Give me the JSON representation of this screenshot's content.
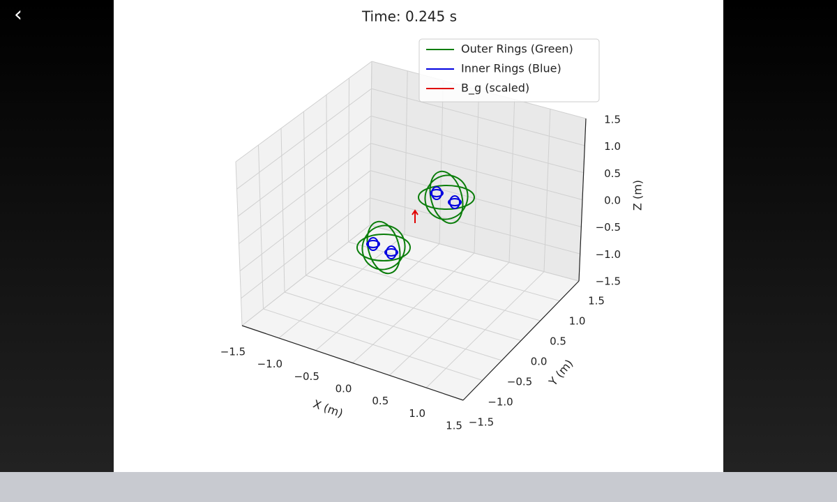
{
  "viewer": {
    "back_icon": "‹"
  },
  "plot": {
    "title": "Time: 0.245 s",
    "legend": [
      "Outer Rings (Green)",
      "Inner Rings (Blue)",
      "B_g (scaled)"
    ],
    "x_label": "X (m)",
    "y_label": "Y (m)",
    "z_label": "Z (m)",
    "x_tick_labels": [
      "−1.5",
      "−1.0",
      "−0.5",
      "0.0",
      "0.5",
      "1.0",
      "1.5"
    ],
    "y_tick_labels": [
      "−1.5",
      "−1.0",
      "−0.5",
      "0.0",
      "0.5",
      "1.0",
      "1.5"
    ],
    "z_tick_labels": [
      "−1.5",
      "−1.0",
      "−0.5",
      "0.0",
      "0.5",
      "1.0",
      "1.5"
    ]
  }
}
